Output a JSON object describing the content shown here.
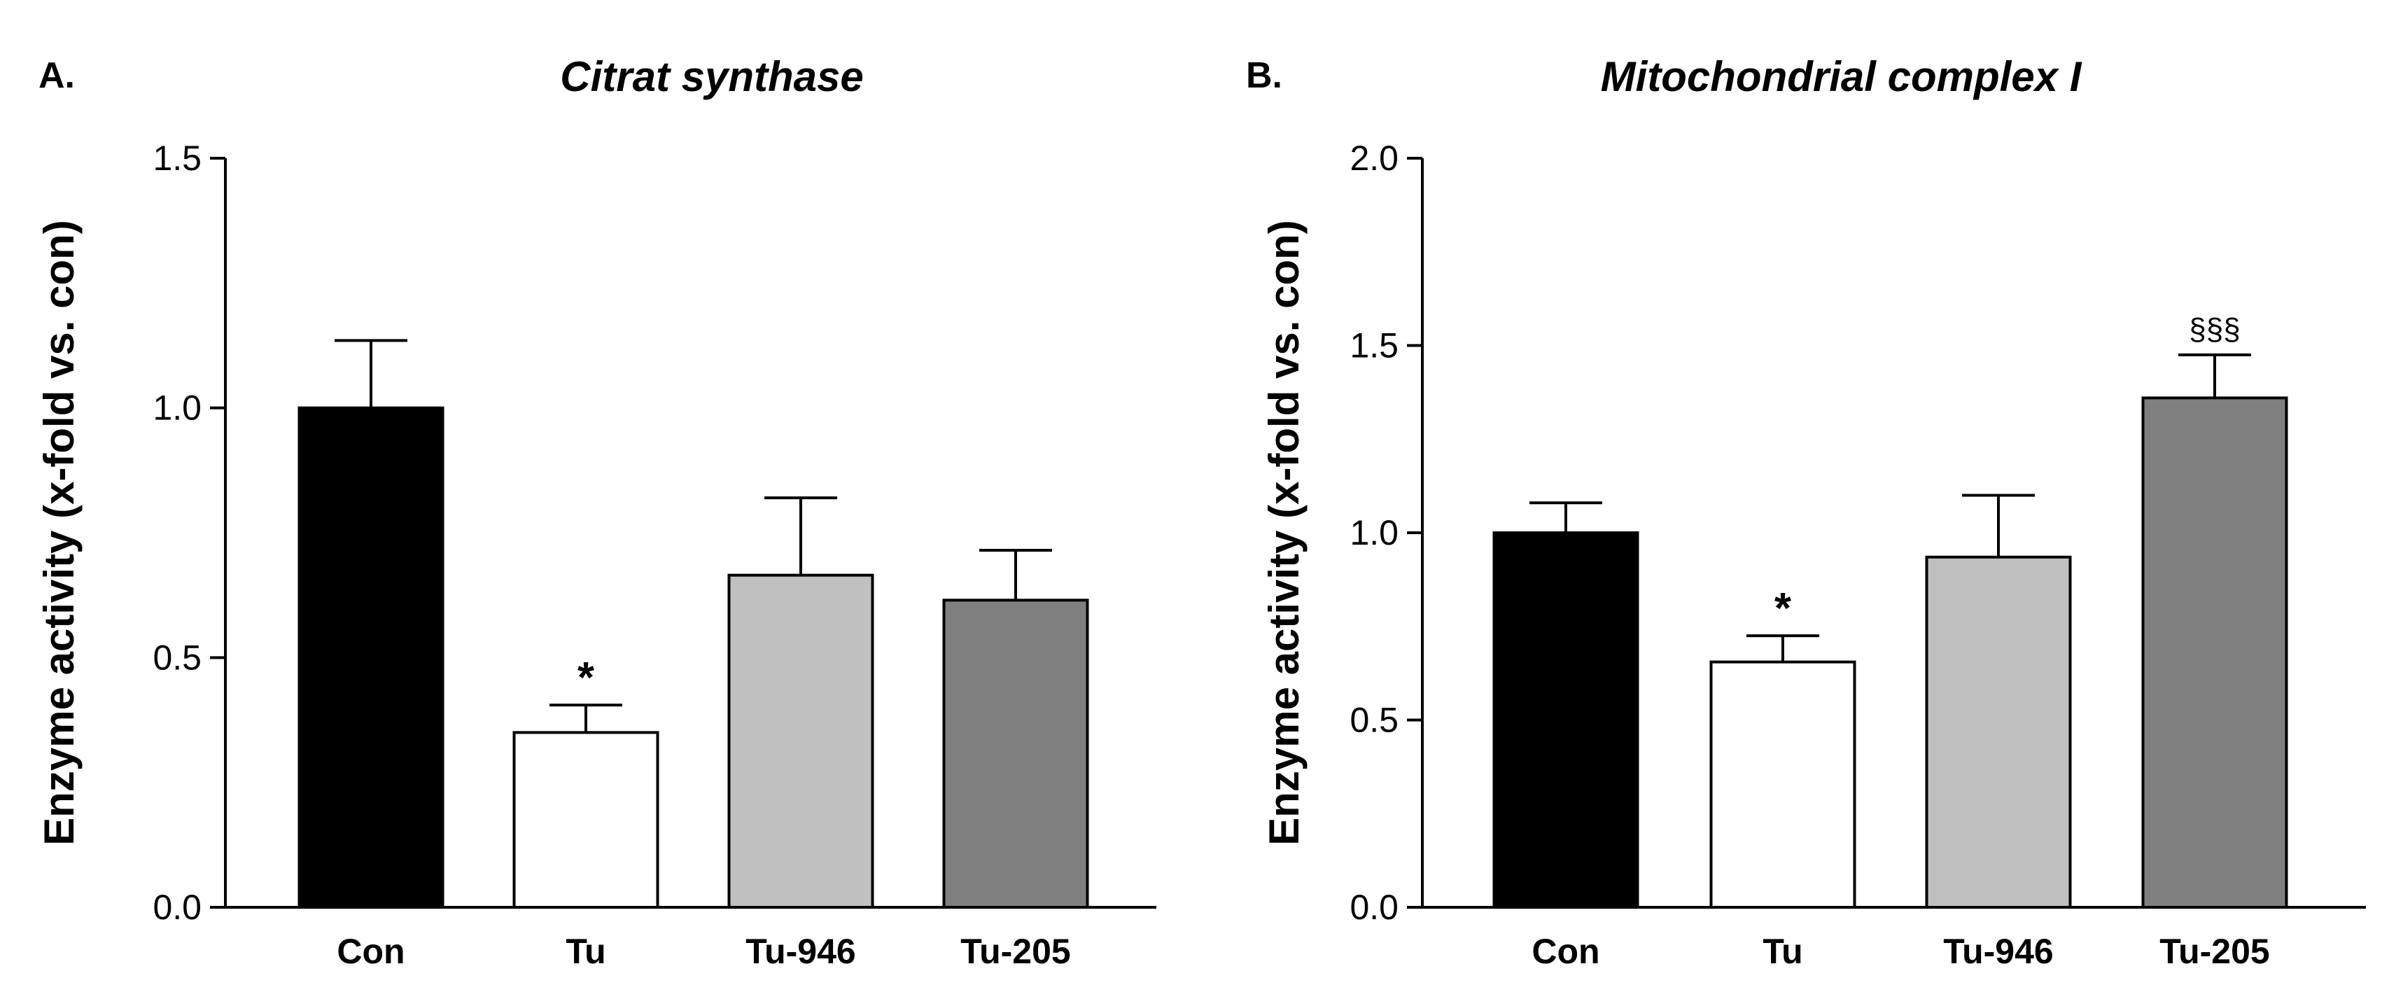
{
  "chart_data": [
    {
      "type": "bar",
      "panel_label": "A.",
      "title": "Citrat synthase",
      "ylabel": "Enzyme activity (x-fold vs. con)",
      "xlabel": "",
      "ylim": [
        0,
        1.5
      ],
      "yticks": [
        0.0,
        0.5,
        1.0,
        1.5
      ],
      "ytick_labels": [
        "0.0",
        "0.5",
        "1.0",
        "1.5"
      ],
      "categories": [
        "Con",
        "Tu",
        "Tu-946",
        "Tu-205"
      ],
      "values": [
        1.0,
        0.35,
        0.665,
        0.615
      ],
      "errors": [
        0.135,
        0.055,
        0.155,
        0.1
      ],
      "colors": [
        "#000000",
        "#ffffff",
        "#c0c0c0",
        "#808080"
      ],
      "annotations": [
        "",
        "*",
        "",
        ""
      ],
      "grid": false,
      "legend": "none"
    },
    {
      "type": "bar",
      "panel_label": "B.",
      "title": "Mitochondrial complex I",
      "ylabel": "Enzyme activity (x-fold vs. con)",
      "xlabel": "",
      "ylim": [
        0,
        2.0
      ],
      "yticks": [
        0.0,
        0.5,
        1.0,
        1.5,
        2.0
      ],
      "ytick_labels": [
        "0.0",
        "0.5",
        "1.0",
        "1.5",
        "2.0"
      ],
      "categories": [
        "Con",
        "Tu",
        "Tu-946",
        "Tu-205"
      ],
      "values": [
        1.0,
        0.655,
        0.935,
        1.36
      ],
      "errors": [
        0.08,
        0.07,
        0.165,
        0.115
      ],
      "colors": [
        "#000000",
        "#ffffff",
        "#c0c0c0",
        "#808080"
      ],
      "annotations": [
        "",
        "*",
        "",
        "§§§"
      ],
      "grid": false,
      "legend": "none"
    }
  ]
}
